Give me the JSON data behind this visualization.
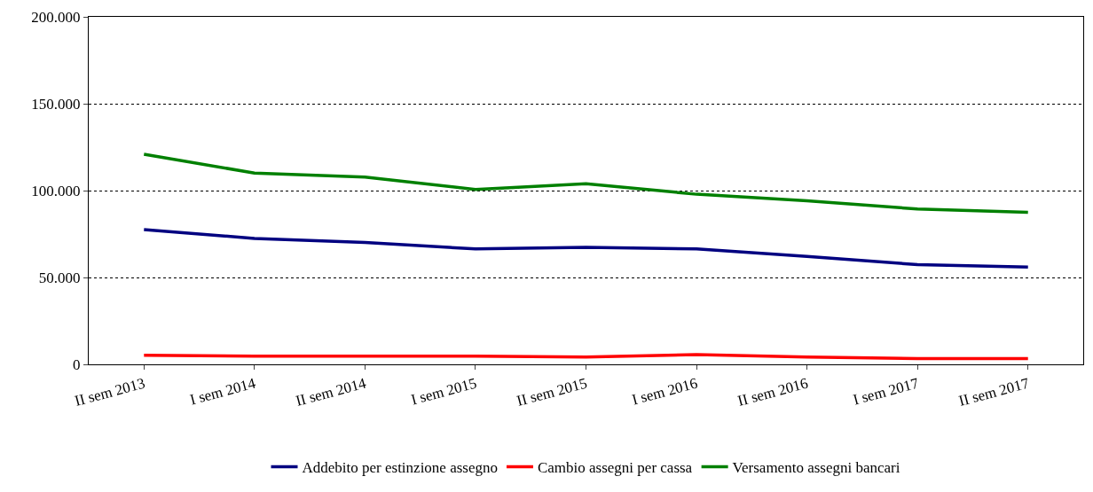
{
  "chart_data": {
    "type": "line",
    "categories": [
      "II sem 2013",
      "I sem 2014",
      "II sem 2014",
      "I sem 2015",
      "II sem 2015",
      "I sem 2016",
      "II sem 2016",
      "I sem 2017",
      "II sem 2017"
    ],
    "series": [
      {
        "name": "Addebito per estinzione assegno",
        "color": "#000080",
        "values": [
          77600,
          72500,
          70100,
          66400,
          67300,
          66400,
          62100,
          57400,
          56000
        ]
      },
      {
        "name": "Cambio assegni per cassa",
        "color": "#ff0000",
        "values": [
          5200,
          4700,
          4700,
          4700,
          4200,
          5600,
          4200,
          3300,
          3300
        ]
      },
      {
        "name": "Versamento assegni bancari",
        "color": "#008000",
        "values": [
          120900,
          110100,
          107800,
          100700,
          104000,
          97900,
          94100,
          89400,
          87500
        ]
      }
    ],
    "ylim": [
      0,
      200000
    ],
    "yticks": [
      {
        "value": 0,
        "label": "0"
      },
      {
        "value": 50000,
        "label": "50.000"
      },
      {
        "value": 100000,
        "label": "100.000"
      },
      {
        "value": 150000,
        "label": "150.000"
      },
      {
        "value": 200000,
        "label": "200.000"
      }
    ],
    "grid": "y",
    "legend": "bottom",
    "marker": "none",
    "line_style": "solid"
  }
}
